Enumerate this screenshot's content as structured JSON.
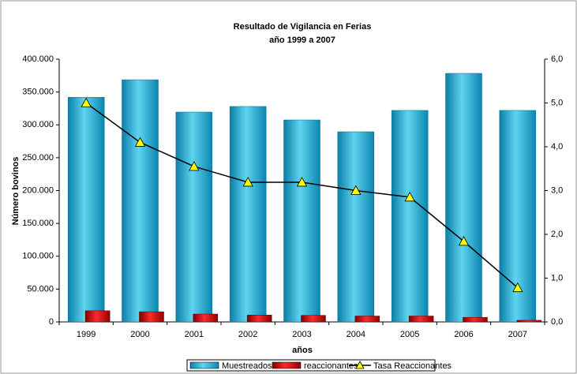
{
  "chart_data": {
    "type": "bar",
    "title": "Resultado de Vigilancia en Ferias",
    "subtitle": "año 1999 a 2007",
    "x_label": "años",
    "y_label": "Número bovinos",
    "categories": [
      "1999",
      "2000",
      "2001",
      "2002",
      "2003",
      "2004",
      "2005",
      "2006",
      "2007"
    ],
    "series": [
      {
        "name": "Muestreados",
        "color": "#1fb4d8",
        "values": [
          342000,
          368700,
          319500,
          328000,
          307500,
          289500,
          322000,
          378400,
          322000
        ]
      },
      {
        "name": "reaccionantes",
        "color": "#cc0000",
        "values": [
          17000,
          15500,
          12000,
          10500,
          10000,
          9000,
          9000,
          7000,
          2500
        ]
      },
      {
        "name": "Tasa Reaccionantes",
        "type": "line",
        "axis": "y2",
        "color": "#000000",
        "marker_color": "#ffff00",
        "values": [
          5.0,
          4.1,
          3.55,
          3.19,
          3.19,
          3.0,
          2.85,
          1.84,
          0.78
        ]
      }
    ],
    "ylim": [
      0,
      400000
    ],
    "yticks": [
      {
        "value": 0,
        "label": "0"
      },
      {
        "value": 50000,
        "label": "50.000"
      },
      {
        "value": 100000,
        "label": "100.000"
      },
      {
        "value": 150000,
        "label": "150.000"
      },
      {
        "value": 200000,
        "label": "200.000"
      },
      {
        "value": 250000,
        "label": "250.000"
      },
      {
        "value": 300000,
        "label": "300.000"
      },
      {
        "value": 350000,
        "label": "350.000"
      },
      {
        "value": 400000,
        "label": "400.000"
      }
    ],
    "y2lim": [
      0,
      6
    ],
    "y2ticks": [
      {
        "value": 0,
        "label": "0,0"
      },
      {
        "value": 1,
        "label": "1,0"
      },
      {
        "value": 2,
        "label": "2,0"
      },
      {
        "value": 3,
        "label": "3,0"
      },
      {
        "value": 4,
        "label": "4,0"
      },
      {
        "value": 5,
        "label": "5,0"
      },
      {
        "value": 6,
        "label": "6,0"
      }
    ],
    "legend": "bottom"
  }
}
